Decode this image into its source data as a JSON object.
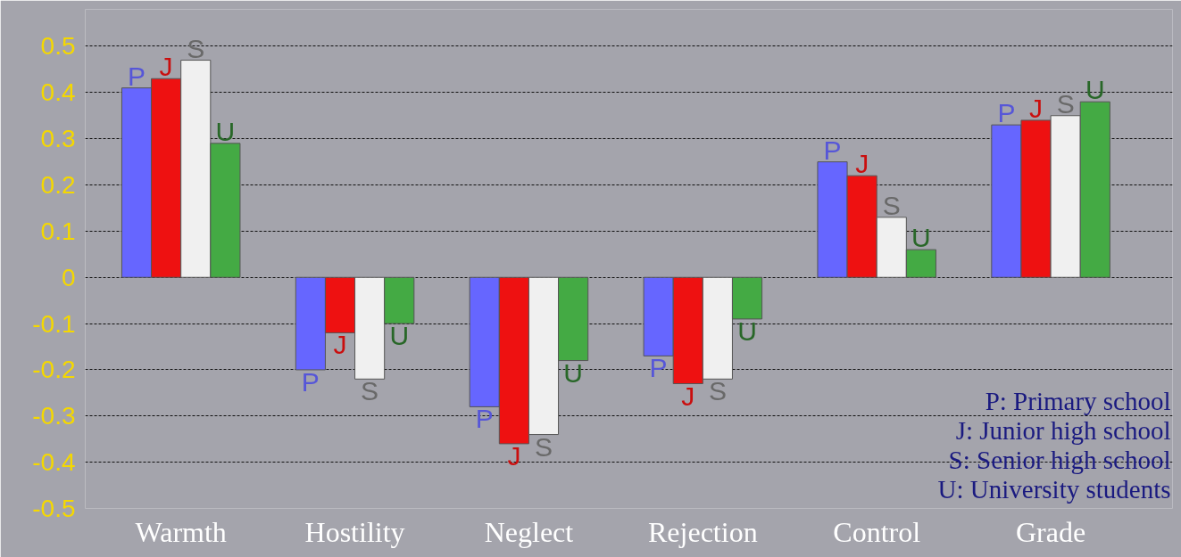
{
  "chart_data": {
    "type": "bar",
    "categories": [
      "Warmth",
      "Hostility",
      "Neglect",
      "Rejection",
      "Control",
      "Grade"
    ],
    "series": [
      {
        "name": "P",
        "color": "#6666ff",
        "values": [
          0.41,
          -0.2,
          -0.28,
          -0.17,
          0.25,
          0.33
        ]
      },
      {
        "name": "J",
        "color": "#ee1111",
        "values": [
          0.43,
          -0.12,
          -0.36,
          -0.23,
          0.22,
          0.34
        ]
      },
      {
        "name": "S",
        "color": "#f0f0f0",
        "values": [
          0.47,
          -0.22,
          -0.34,
          -0.22,
          0.13,
          0.35
        ]
      },
      {
        "name": "U",
        "color": "#44aa44",
        "values": [
          0.29,
          -0.1,
          -0.18,
          -0.09,
          0.06,
          0.38
        ]
      }
    ],
    "ylim": [
      -0.5,
      0.5
    ],
    "yticks": [
      -0.5,
      -0.4,
      -0.3,
      -0.2,
      -0.1,
      0,
      0.1,
      0.2,
      0.3,
      0.4,
      0.5
    ],
    "grid": "y",
    "legend": false,
    "annotations": [
      "P: Primary school",
      "J: Junior high school",
      "S: Senior high school",
      "U: University students"
    ]
  }
}
